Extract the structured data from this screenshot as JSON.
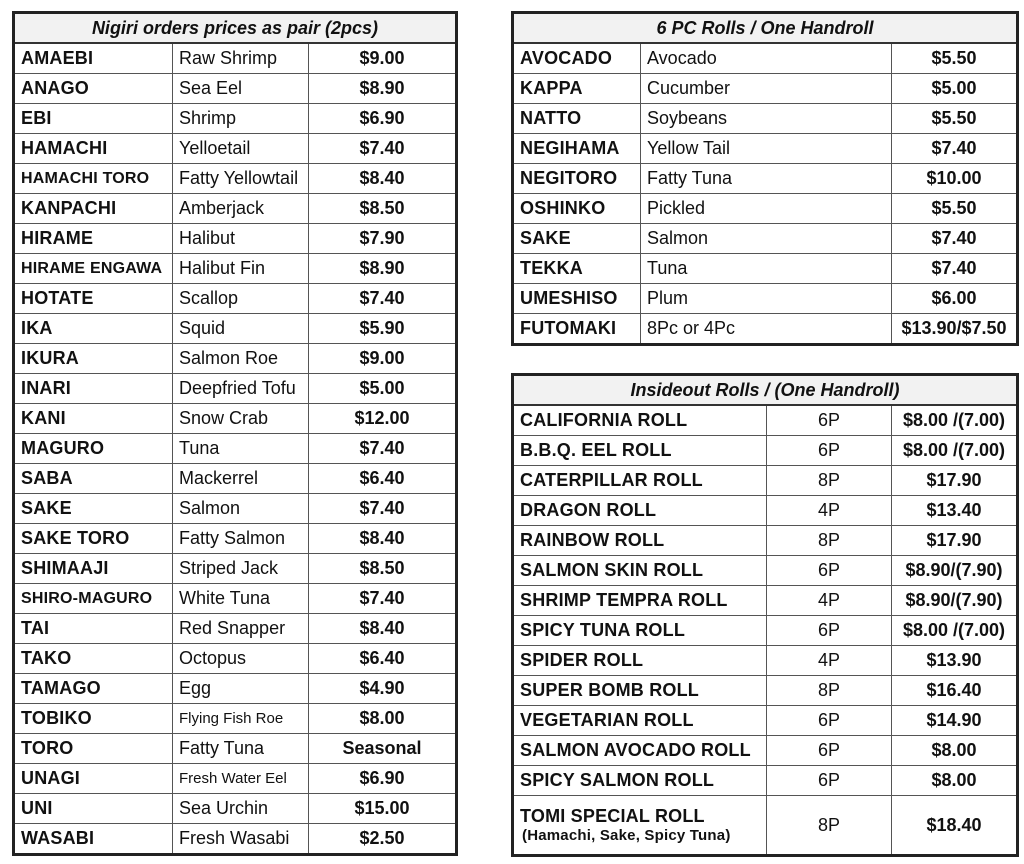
{
  "nigiri": {
    "title": "Nigiri orders prices as pair (2pcs)",
    "items": [
      {
        "name": "AMAEBI",
        "desc": "Raw Shrimp",
        "price": "$9.00"
      },
      {
        "name": "ANAGO",
        "desc": "Sea Eel",
        "price": "$8.90"
      },
      {
        "name": "EBI",
        "desc": "Shrimp",
        "price": "$6.90"
      },
      {
        "name": "HAMACHI",
        "desc": "Yelloetail",
        "price": "$7.40"
      },
      {
        "name": "HAMACHI TORO",
        "desc": "Fatty Yellowtail",
        "price": "$8.40"
      },
      {
        "name": "KANPACHI",
        "desc": "Amberjack",
        "price": "$8.50"
      },
      {
        "name": "HIRAME",
        "desc": "Halibut",
        "price": "$7.90"
      },
      {
        "name": "HIRAME ENGAWA",
        "desc": "Halibut Fin",
        "price": "$8.90"
      },
      {
        "name": "HOTATE",
        "desc": "Scallop",
        "price": "$7.40"
      },
      {
        "name": "IKA",
        "desc": "Squid",
        "price": "$5.90"
      },
      {
        "name": "IKURA",
        "desc": "Salmon Roe",
        "price": "$9.00"
      },
      {
        "name": "INARI",
        "desc": "Deepfried Tofu",
        "price": "$5.00"
      },
      {
        "name": "KANI",
        "desc": "Snow Crab",
        "price": "$12.00"
      },
      {
        "name": "MAGURO",
        "desc": "Tuna",
        "price": "$7.40"
      },
      {
        "name": "SABA",
        "desc": "Mackerrel",
        "price": "$6.40"
      },
      {
        "name": "SAKE",
        "desc": "Salmon",
        "price": "$7.40"
      },
      {
        "name": "SAKE TORO",
        "desc": "Fatty Salmon",
        "price": "$8.40"
      },
      {
        "name": "SHIMAAJI",
        "desc": "Striped Jack",
        "price": "$8.50"
      },
      {
        "name": "SHIRO-MAGURO",
        "desc": "White Tuna",
        "price": "$7.40"
      },
      {
        "name": "TAI",
        "desc": "Red Snapper",
        "price": "$8.40"
      },
      {
        "name": "TAKO",
        "desc": "Octopus",
        "price": "$6.40"
      },
      {
        "name": "TAMAGO",
        "desc": "Egg",
        "price": "$4.90"
      },
      {
        "name": "TOBIKO",
        "desc": "Flying Fish Roe",
        "price": "$8.00"
      },
      {
        "name": "TORO",
        "desc": "Fatty Tuna",
        "price": "Seasonal"
      },
      {
        "name": "UNAGI",
        "desc": "Fresh Water Eel",
        "price": "$6.90"
      },
      {
        "name": "UNI",
        "desc": "Sea Urchin",
        "price": "$15.00"
      },
      {
        "name": "WASABI",
        "desc": "Fresh Wasabi",
        "price": "$2.50"
      }
    ]
  },
  "rolls6": {
    "title": "6 PC Rolls / One Handroll",
    "items": [
      {
        "name": "AVOCADO",
        "desc": "Avocado",
        "price": "$5.50"
      },
      {
        "name": "KAPPA",
        "desc": "Cucumber",
        "price": "$5.00"
      },
      {
        "name": "NATTO",
        "desc": "Soybeans",
        "price": "$5.50"
      },
      {
        "name": "NEGIHAMA",
        "desc": "Yellow Tail",
        "price": "$7.40"
      },
      {
        "name": "NEGITORO",
        "desc": "Fatty Tuna",
        "price": "$10.00"
      },
      {
        "name": "OSHINKO",
        "desc": "Pickled",
        "price": "$5.50"
      },
      {
        "name": "SAKE",
        "desc": "Salmon",
        "price": "$7.40"
      },
      {
        "name": "TEKKA",
        "desc": "Tuna",
        "price": "$7.40"
      },
      {
        "name": "UMESHISO",
        "desc": "Plum",
        "price": "$6.00"
      },
      {
        "name": "FUTOMAKI",
        "desc": "8Pc or 4Pc",
        "price": "$13.90/$7.50"
      }
    ]
  },
  "inside": {
    "title": "Insideout Rolls / (One Handroll)",
    "items": [
      {
        "name": "CALIFORNIA ROLL",
        "pcs": "6P",
        "price": "$8.00 /(7.00)"
      },
      {
        "name": "B.B.Q. EEL ROLL",
        "pcs": "6P",
        "price": "$8.00 /(7.00)"
      },
      {
        "name": "CATERPILLAR ROLL",
        "pcs": "8P",
        "price": "$17.90"
      },
      {
        "name": "DRAGON ROLL",
        "pcs": "4P",
        "price": "$13.40"
      },
      {
        "name": "RAINBOW ROLL",
        "pcs": "8P",
        "price": "$17.90"
      },
      {
        "name": "SALMON SKIN ROLL",
        "pcs": "6P",
        "price": "$8.90/(7.90)"
      },
      {
        "name": "SHRIMP TEMPRA ROLL",
        "pcs": "4P",
        "price": "$8.90/(7.90)"
      },
      {
        "name": "SPICY TUNA ROLL",
        "pcs": "6P",
        "price": "$8.00 /(7.00)"
      },
      {
        "name": "SPIDER ROLL",
        "pcs": "4P",
        "price": "$13.90"
      },
      {
        "name": "SUPER BOMB ROLL",
        "pcs": "8P",
        "price": "$16.40"
      },
      {
        "name": "VEGETARIAN ROLL",
        "pcs": "6P",
        "price": "$14.90"
      },
      {
        "name": "SALMON AVOCADO ROLL",
        "pcs": "6P",
        "price": "$8.00"
      },
      {
        "name": "SPICY SALMON ROLL",
        "pcs": "6P",
        "price": "$8.00"
      },
      {
        "name": "TOMI SPECIAL ROLL",
        "sub": "(Hamachi, Sake, Spicy Tuna)",
        "pcs": "8P",
        "price": "$18.40"
      }
    ]
  }
}
